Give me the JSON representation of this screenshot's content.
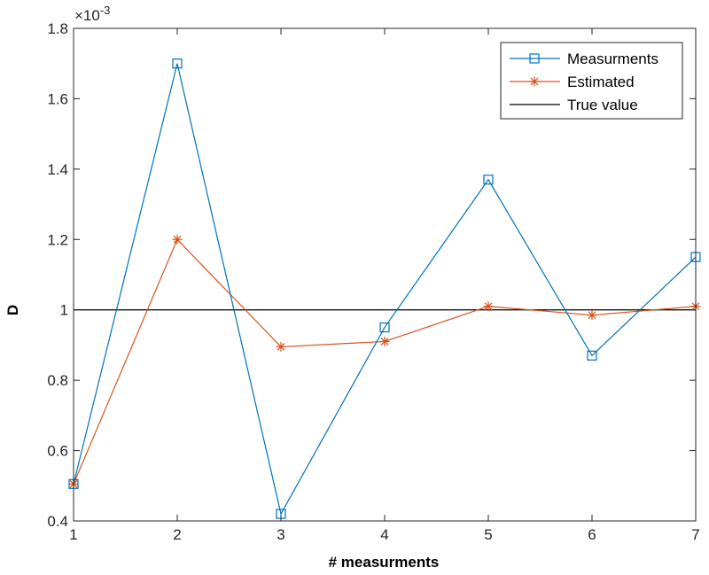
{
  "chart_data": {
    "type": "line",
    "title": "",
    "xlabel": "# measurments",
    "ylabel": "D",
    "y_multiplier_text": "×10",
    "y_multiplier_exponent": "-3",
    "x": [
      1,
      2,
      3,
      4,
      5,
      6,
      7
    ],
    "xlim": [
      1,
      7
    ],
    "ylim": [
      0.4,
      1.8
    ],
    "xticks": [
      "1",
      "2",
      "3",
      "4",
      "5",
      "6",
      "7"
    ],
    "yticks": [
      "0.4",
      "0.6",
      "0.8",
      "1",
      "1.2",
      "1.4",
      "1.6",
      "1.8"
    ],
    "grid": false,
    "legend_position": "top-right",
    "series": [
      {
        "name": "Measurments",
        "values": [
          0.505,
          1.7,
          0.42,
          0.95,
          1.37,
          0.87,
          1.15
        ],
        "color": "#0072BD",
        "marker": "square"
      },
      {
        "name": "Estimated",
        "values": [
          0.505,
          1.2,
          0.895,
          0.91,
          1.01,
          0.985,
          1.01
        ],
        "color": "#D95319",
        "marker": "asterisk"
      },
      {
        "name": "True value",
        "values": [
          1,
          1,
          1,
          1,
          1,
          1,
          1
        ],
        "color": "#000000",
        "marker": "none"
      }
    ]
  }
}
